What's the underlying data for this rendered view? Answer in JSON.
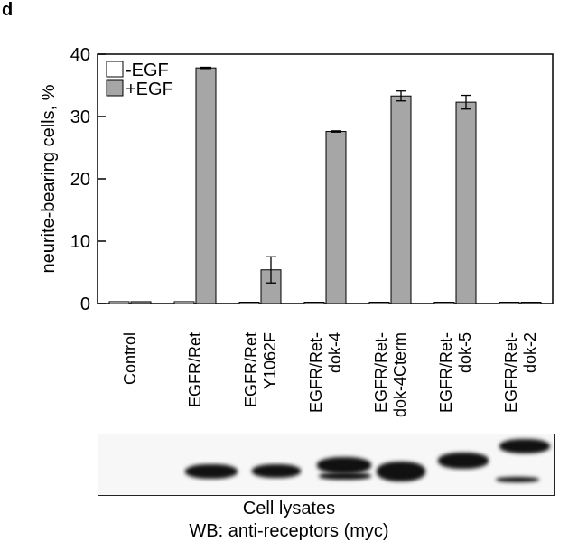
{
  "panel_label": "d",
  "chart_data": {
    "type": "bar",
    "ylabel": "neurite-bearing cells, %",
    "xlabel": "",
    "ylim": [
      0,
      40
    ],
    "yticks": [
      0,
      10,
      20,
      30,
      40
    ],
    "grid": false,
    "legend_position": "top-left",
    "categories": [
      [
        "Control"
      ],
      [
        "EGFR/Ret"
      ],
      [
        "EGFR/Ret",
        "Y1062F"
      ],
      [
        "EGFR/Ret-",
        "dok-4"
      ],
      [
        "EGFR/Ret-",
        "dok-4Cterm"
      ],
      [
        "EGFR/Ret-",
        "dok-5"
      ],
      [
        "EGFR/Ret-",
        "dok-2"
      ]
    ],
    "series": [
      {
        "name": "-EGF",
        "color": "#ffffff",
        "values": [
          0.3,
          0.3,
          0.2,
          0.2,
          0.2,
          0.1,
          0.1
        ],
        "errors": [
          0,
          0,
          0,
          0,
          0,
          0,
          0
        ]
      },
      {
        "name": "+EGF",
        "color": "#a6a6a6",
        "values": [
          0.3,
          37.8,
          5.4,
          27.6,
          33.3,
          32.3,
          0.1
        ],
        "errors": [
          0,
          0.1,
          2.1,
          0.1,
          0.8,
          1.1,
          0
        ]
      }
    ]
  },
  "blot": {
    "caption_line1": "Cell lysates",
    "caption_line2": "WB: anti-receptors (myc)"
  }
}
